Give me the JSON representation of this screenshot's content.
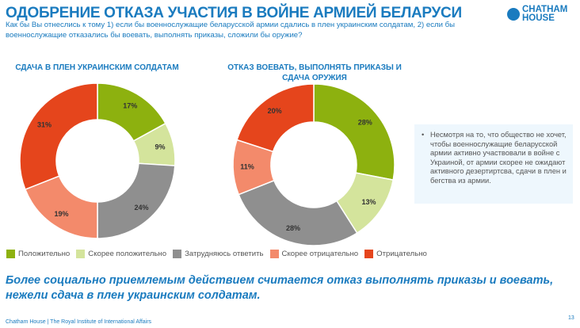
{
  "header": {
    "title": "ОДОБРЕНИЕ ОТКАЗА УЧАСТИЯ В ВОЙНЕ АРМИЕЙ БЕЛАРУСИ",
    "subtitle": "Как бы Вы отнеслись к тому 1) если бы военнослужащие беларусской армии сдались в плен украинским солдатам, 2) если бы военнослужащие отказались бы воевать, выполнять приказы, сложили бы оружие?",
    "logo": "CHATHAM HOUSE"
  },
  "colors": {
    "positive": "#8db10f",
    "rather_positive": "#d4e49c",
    "hard_to_say": "#8f8f8f",
    "rather_negative": "#f38a6b",
    "negative": "#e5451c",
    "accent": "#1a7bbf"
  },
  "chart_data": [
    {
      "type": "pie",
      "title": "СДАЧА В ПЛЕН УКРАИНСКИМ СОЛДАТАМ",
      "categories": [
        "Положительно",
        "Скорее положительно",
        "Затрудняюсь ответить",
        "Скорее отрицательно",
        "Отрицательно"
      ],
      "values": [
        17,
        9,
        24,
        19,
        31
      ],
      "labels": [
        "17%",
        "9%",
        "24%",
        "19%",
        "31%"
      ]
    },
    {
      "type": "pie",
      "title": "ОТКАЗ ВОЕВАТЬ, ВЫПОЛНЯТЬ ПРИКАЗЫ И СДАЧА ОРУЖИЯ",
      "categories": [
        "Положительно",
        "Скорее положительно",
        "Затрудняюсь ответить",
        "Скорее отрицательно",
        "Отрицательно"
      ],
      "values": [
        28,
        13,
        28,
        11,
        20
      ],
      "labels": [
        "28%",
        "13%",
        "28%",
        "11%",
        "20%"
      ]
    }
  ],
  "legend": [
    "Положительно",
    "Скорее положительно",
    "Затрудняюсь ответить",
    "Скорее отрицательно",
    "Отрицательно"
  ],
  "note": "Несмотря на то, что общество не хочет, чтобы военнослужащие беларусской армии активно участвовали в войне с Украиной, от армии скорее не ожидают активного дезертиртсва, сдачи в плен и бегства из армии.",
  "note_bullet": "•",
  "conclusion": "Более социально приемлемым действием считается отказ выполнять приказы и воевать, нежели сдача в плен украинским солдатам.",
  "footer": "Chatham House  |  The Royal Institute of International Affairs",
  "page_number": "13"
}
